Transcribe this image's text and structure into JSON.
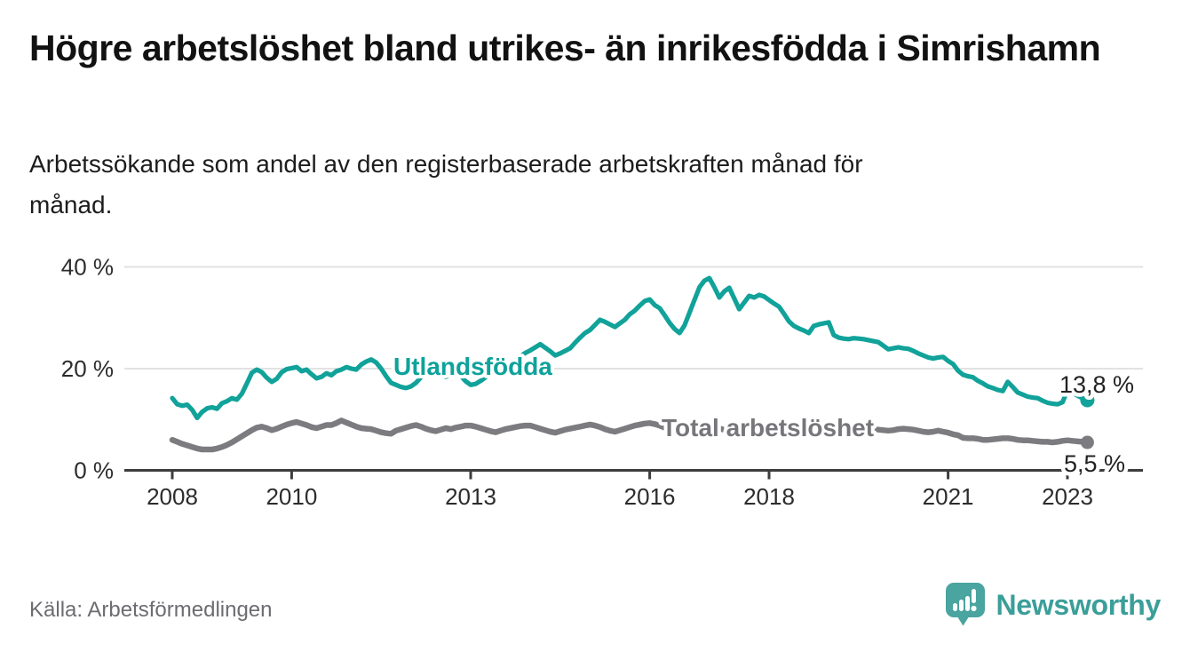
{
  "header": {
    "title": "Högre arbetslöshet bland utrikes- än inrikesfödda i Simrishamn",
    "subtitle": "Arbetssökande som andel av den registerbaserade arbetskraften månad för månad."
  },
  "footer": {
    "source": "Källa: Arbetsförmedlingen",
    "brand": "Newsworthy",
    "brand_color": "#3b9e99",
    "logo_icon": "speech-bubble-bar-chart"
  },
  "chart_data": {
    "type": "line",
    "unit": "%",
    "frequency": "monthly",
    "x_start": {
      "year": 2008,
      "month": 1
    },
    "x_end": {
      "year": 2023,
      "month": 5
    },
    "x_tick_years": [
      2008,
      2010,
      2013,
      2016,
      2018,
      2021,
      2023
    ],
    "y_ticks": [
      {
        "value": 0,
        "label": "0 %"
      },
      {
        "value": 20,
        "label": "20 %"
      },
      {
        "value": 40,
        "label": "40 %"
      }
    ],
    "ylim": [
      0,
      44
    ],
    "grid": "horizontal-only",
    "legend_position": "inline-labels-on-lines",
    "axis_color": "#3d3d3d",
    "gridline_color": "#e2e2e2",
    "tick_label_color": "#2c2c2c",
    "end_label_color": "#222222",
    "series": [
      {
        "name": "Utlandsfödda",
        "color": "#11a29a",
        "label_color": "#0ea29b",
        "end_value": 13.8,
        "end_label": "13,8 %",
        "values": [
          14.2,
          13.0,
          12.7,
          12.9,
          11.9,
          10.3,
          11.5,
          12.2,
          12.4,
          12.1,
          13.2,
          13.6,
          14.2,
          13.9,
          15.1,
          17.1,
          19.2,
          19.8,
          19.3,
          18.2,
          17.4,
          18.0,
          19.3,
          19.9,
          20.1,
          20.3,
          19.5,
          19.8,
          18.9,
          18.1,
          18.4,
          19.1,
          18.7,
          19.5,
          19.8,
          20.3,
          20.0,
          19.8,
          20.8,
          21.4,
          21.8,
          21.2,
          20.0,
          18.5,
          17.2,
          16.8,
          16.4,
          16.2,
          16.5,
          17.2,
          18.3,
          19.2,
          19.8,
          19.4,
          18.8,
          18.4,
          18.9,
          19.5,
          18.6,
          17.5,
          16.8,
          17.0,
          17.6,
          18.3,
          18.9,
          19.4,
          19.9,
          20.4,
          21.0,
          21.7,
          22.4,
          23.1,
          23.6,
          24.2,
          24.8,
          24.1,
          23.4,
          22.6,
          23.0,
          23.5,
          24.0,
          25.1,
          26.1,
          27.0,
          27.6,
          28.6,
          29.6,
          29.2,
          28.7,
          28.2,
          28.9,
          29.6,
          30.7,
          31.4,
          32.4,
          33.3,
          33.6,
          32.5,
          31.9,
          30.5,
          29.0,
          27.8,
          27.0,
          28.5,
          31.0,
          33.5,
          36.0,
          37.3,
          37.8,
          36.0,
          34.0,
          35.2,
          35.9,
          33.8,
          31.7,
          33.0,
          34.3,
          34.0,
          34.5,
          34.2,
          33.5,
          32.8,
          32.2,
          30.8,
          29.3,
          28.4,
          27.9,
          27.5,
          27.0,
          28.4,
          28.7,
          28.9,
          29.1,
          26.6,
          26.1,
          25.9,
          25.8,
          26.0,
          25.9,
          25.8,
          25.6,
          25.4,
          25.2,
          24.5,
          23.8,
          24.0,
          24.2,
          24.0,
          23.9,
          23.5,
          23.0,
          22.6,
          22.2,
          22.0,
          22.2,
          22.3,
          21.5,
          20.9,
          19.6,
          18.8,
          18.5,
          18.3,
          17.6,
          17.1,
          16.5,
          16.2,
          15.8,
          15.6,
          17.4,
          16.4,
          15.3,
          14.9,
          14.5,
          14.3,
          14.2,
          13.7,
          13.3,
          13.1,
          13.0,
          13.4,
          15.7,
          15.3,
          14.7,
          14.2,
          13.8
        ]
      },
      {
        "name": "Total arbetslöshet",
        "color": "#7c7c80",
        "label_color": "#76767b",
        "end_value": 5.5,
        "end_label": "5,5 %",
        "values": [
          6.0,
          5.6,
          5.2,
          4.9,
          4.6,
          4.3,
          4.1,
          4.1,
          4.1,
          4.3,
          4.6,
          5.0,
          5.5,
          6.1,
          6.7,
          7.3,
          7.9,
          8.4,
          8.6,
          8.3,
          7.9,
          8.2,
          8.6,
          9.0,
          9.3,
          9.5,
          9.2,
          8.9,
          8.5,
          8.3,
          8.6,
          8.9,
          8.9,
          9.3,
          9.8,
          9.4,
          9.0,
          8.6,
          8.3,
          8.2,
          8.1,
          7.8,
          7.5,
          7.3,
          7.2,
          7.8,
          8.1,
          8.4,
          8.7,
          8.9,
          8.6,
          8.2,
          7.9,
          7.7,
          8.0,
          8.3,
          8.1,
          8.4,
          8.6,
          8.8,
          8.8,
          8.6,
          8.3,
          8.0,
          7.7,
          7.5,
          7.8,
          8.1,
          8.3,
          8.5,
          8.7,
          8.8,
          8.8,
          8.5,
          8.2,
          7.9,
          7.6,
          7.4,
          7.7,
          8.0,
          8.2,
          8.4,
          8.6,
          8.8,
          9.0,
          8.8,
          8.5,
          8.1,
          7.8,
          7.6,
          7.9,
          8.2,
          8.5,
          8.8,
          9.0,
          9.2,
          9.3,
          9.1,
          8.8,
          8.4,
          8.1,
          7.9,
          8.1,
          8.4,
          8.2,
          8.5,
          8.7,
          8.8,
          8.6,
          8.4,
          8.2,
          8.0,
          7.8,
          7.6,
          7.8,
          8.0,
          8.2,
          8.1,
          8.3,
          8.5,
          8.4,
          8.2,
          8.0,
          7.8,
          7.6,
          7.4,
          7.6,
          7.8,
          7.7,
          7.9,
          8.1,
          8.3,
          8.5,
          8.3,
          8.1,
          7.9,
          7.7,
          7.6,
          7.8,
          8.0,
          7.9,
          8.1,
          8.0,
          7.9,
          7.8,
          7.9,
          8.1,
          8.2,
          8.1,
          8.0,
          7.8,
          7.6,
          7.5,
          7.6,
          7.8,
          7.6,
          7.4,
          7.1,
          6.9,
          6.4,
          6.3,
          6.3,
          6.2,
          6.0,
          6.0,
          6.1,
          6.2,
          6.3,
          6.3,
          6.2,
          6.0,
          5.9,
          5.9,
          5.8,
          5.7,
          5.6,
          5.6,
          5.5,
          5.6,
          5.8,
          5.9,
          5.8,
          5.7,
          5.6,
          5.5
        ]
      }
    ]
  }
}
